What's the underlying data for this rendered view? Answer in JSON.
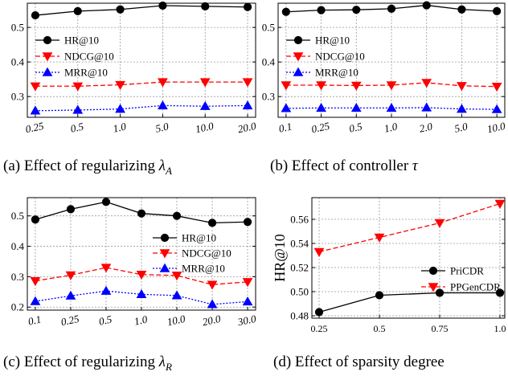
{
  "captions": [
    {
      "label": "(a)",
      "text": "Effect of regularizing",
      "symbol": "λ",
      "sub": "A"
    },
    {
      "label": "(b)",
      "text": "Effect of controller",
      "symbol": "τ",
      "sub": ""
    },
    {
      "label": "(c)",
      "text": "Effect of regularizing",
      "symbol": "λ",
      "sub": "R"
    },
    {
      "label": "(d)",
      "text": "Effect of sparsity degree",
      "symbol": "",
      "sub": ""
    }
  ],
  "chart_data": [
    {
      "type": "line",
      "title": "",
      "x_type": "categorical",
      "categories": [
        "0.25",
        "0.5",
        "1.0",
        "5.0",
        "10.0",
        "20.0"
      ],
      "ylim": [
        0.24,
        0.57
      ],
      "yticks": [
        "0.3",
        "0.4",
        "0.5"
      ],
      "ytick_values": [
        0.3,
        0.4,
        0.5
      ],
      "grid": true,
      "legend_position": "middle-left",
      "series": [
        {
          "name": "HR@10",
          "color": "#000000",
          "marker": "circle",
          "dash": "solid",
          "values": [
            0.535,
            0.547,
            0.552,
            0.563,
            0.561,
            0.559
          ]
        },
        {
          "name": "NDCG@10",
          "color": "#ff0000",
          "marker": "triangle-down",
          "dash": "dashed",
          "values": [
            0.33,
            0.33,
            0.334,
            0.342,
            0.342,
            0.342
          ]
        },
        {
          "name": "MRR@10",
          "color": "#0000ff",
          "marker": "triangle-up",
          "dash": "dotted",
          "values": [
            0.259,
            0.261,
            0.264,
            0.274,
            0.272,
            0.274
          ]
        }
      ]
    },
    {
      "type": "line",
      "title": "",
      "x_type": "categorical",
      "categories": [
        "0.1",
        "0.25",
        "0.5",
        "1.0",
        "2.0",
        "5.0",
        "10.0"
      ],
      "ylim": [
        0.24,
        0.57
      ],
      "yticks": [
        "0.3",
        "0.4",
        "0.5"
      ],
      "ytick_values": [
        0.3,
        0.4,
        0.5
      ],
      "grid": true,
      "legend_position": "middle-left",
      "series": [
        {
          "name": "HR@10",
          "color": "#000000",
          "marker": "circle",
          "dash": "solid",
          "values": [
            0.545,
            0.55,
            0.551,
            0.554,
            0.564,
            0.552,
            0.547
          ]
        },
        {
          "name": "NDCG@10",
          "color": "#ff0000",
          "marker": "triangle-down",
          "dash": "dashed",
          "values": [
            0.333,
            0.333,
            0.332,
            0.333,
            0.34,
            0.331,
            0.329
          ]
        },
        {
          "name": "MRR@10",
          "color": "#0000ff",
          "marker": "triangle-up",
          "dash": "dotted",
          "values": [
            0.266,
            0.267,
            0.267,
            0.267,
            0.268,
            0.264,
            0.263
          ]
        }
      ]
    },
    {
      "type": "line",
      "title": "",
      "x_type": "categorical",
      "categories": [
        "0.1",
        "0.25",
        "0.5",
        "1.0",
        "10.0",
        "20.0",
        "30.0"
      ],
      "ylim": [
        0.19,
        0.56
      ],
      "yticks": [
        "0.2",
        "0.3",
        "0.4",
        "0.5"
      ],
      "ytick_values": [
        0.2,
        0.3,
        0.4,
        0.5
      ],
      "grid": true,
      "legend_position": "right",
      "series": [
        {
          "name": "HR@10",
          "color": "#000000",
          "marker": "circle",
          "dash": "solid",
          "values": [
            0.488,
            0.522,
            0.546,
            0.508,
            0.5,
            0.477,
            0.48
          ]
        },
        {
          "name": "NDCG@10",
          "color": "#ff0000",
          "marker": "triangle-down",
          "dash": "dashed",
          "values": [
            0.286,
            0.305,
            0.33,
            0.307,
            0.304,
            0.274,
            0.283
          ]
        },
        {
          "name": "MRR@10",
          "color": "#0000ff",
          "marker": "triangle-up",
          "dash": "dotted",
          "values": [
            0.219,
            0.237,
            0.253,
            0.242,
            0.238,
            0.209,
            0.218
          ]
        }
      ]
    },
    {
      "type": "line",
      "title": "",
      "x_type": "numeric",
      "ylabel": "HR@10",
      "x": [
        0.25,
        0.5,
        0.75,
        1.0
      ],
      "xticks": [
        "0.25",
        "0.5",
        "0.75",
        "1.0"
      ],
      "xtick_values": [
        0.25,
        0.5,
        0.75,
        1.0
      ],
      "xlim": [
        0.22,
        1.02
      ],
      "ylim": [
        0.478,
        0.578
      ],
      "yticks": [
        "0.48",
        "0.50",
        "0.52",
        "0.54",
        "0.56"
      ],
      "ytick_values": [
        0.48,
        0.5,
        0.52,
        0.54,
        0.56
      ],
      "grid": true,
      "legend_position": "center-right",
      "series": [
        {
          "name": "PriCDR",
          "color": "#000000",
          "marker": "circle",
          "dash": "solid",
          "values": [
            0.483,
            0.497,
            0.499,
            0.499
          ]
        },
        {
          "name": "PPGenCDR",
          "color": "#ff0000",
          "marker": "triangle-down",
          "dash": "dashed",
          "values": [
            0.533,
            0.545,
            0.557,
            0.573
          ]
        }
      ]
    }
  ]
}
